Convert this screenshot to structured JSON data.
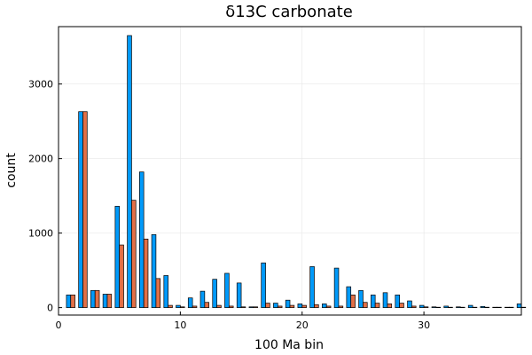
{
  "chart_data": {
    "type": "bar",
    "title": "δ13C carbonate",
    "xlabel": "100 Ma bin",
    "ylabel": "count",
    "xlim": [
      0,
      38
    ],
    "ylim": [
      -100,
      3770
    ],
    "xticks": [
      0,
      10,
      20,
      30
    ],
    "yticks": [
      0,
      1000,
      2000,
      3000
    ],
    "grid": true,
    "legend": "none",
    "bar_width": 0.35,
    "x": [
      1,
      2,
      3,
      4,
      5,
      6,
      7,
      8,
      9,
      10,
      11,
      12,
      13,
      14,
      15,
      16,
      17,
      18,
      19,
      20,
      21,
      22,
      23,
      24,
      25,
      26,
      27,
      28,
      29,
      30,
      31,
      32,
      33,
      34,
      35,
      36,
      37,
      38
    ],
    "series": [
      {
        "color": "#009AFA",
        "values": [
          170,
          2630,
          230,
          180,
          1360,
          3650,
          1820,
          980,
          430,
          30,
          130,
          220,
          380,
          460,
          330,
          10,
          600,
          60,
          100,
          50,
          550,
          50,
          530,
          280,
          230,
          170,
          200,
          170,
          90,
          30,
          10,
          20,
          10,
          30,
          15,
          5,
          5,
          50
        ]
      },
      {
        "color": "#E26F46",
        "values": [
          170,
          2630,
          230,
          180,
          840,
          1440,
          920,
          390,
          30,
          10,
          20,
          70,
          30,
          20,
          10,
          10,
          60,
          20,
          30,
          30,
          40,
          20,
          20,
          170,
          70,
          60,
          50,
          60,
          20,
          10,
          5,
          5,
          5,
          5,
          5,
          5,
          5,
          5
        ]
      }
    ]
  }
}
